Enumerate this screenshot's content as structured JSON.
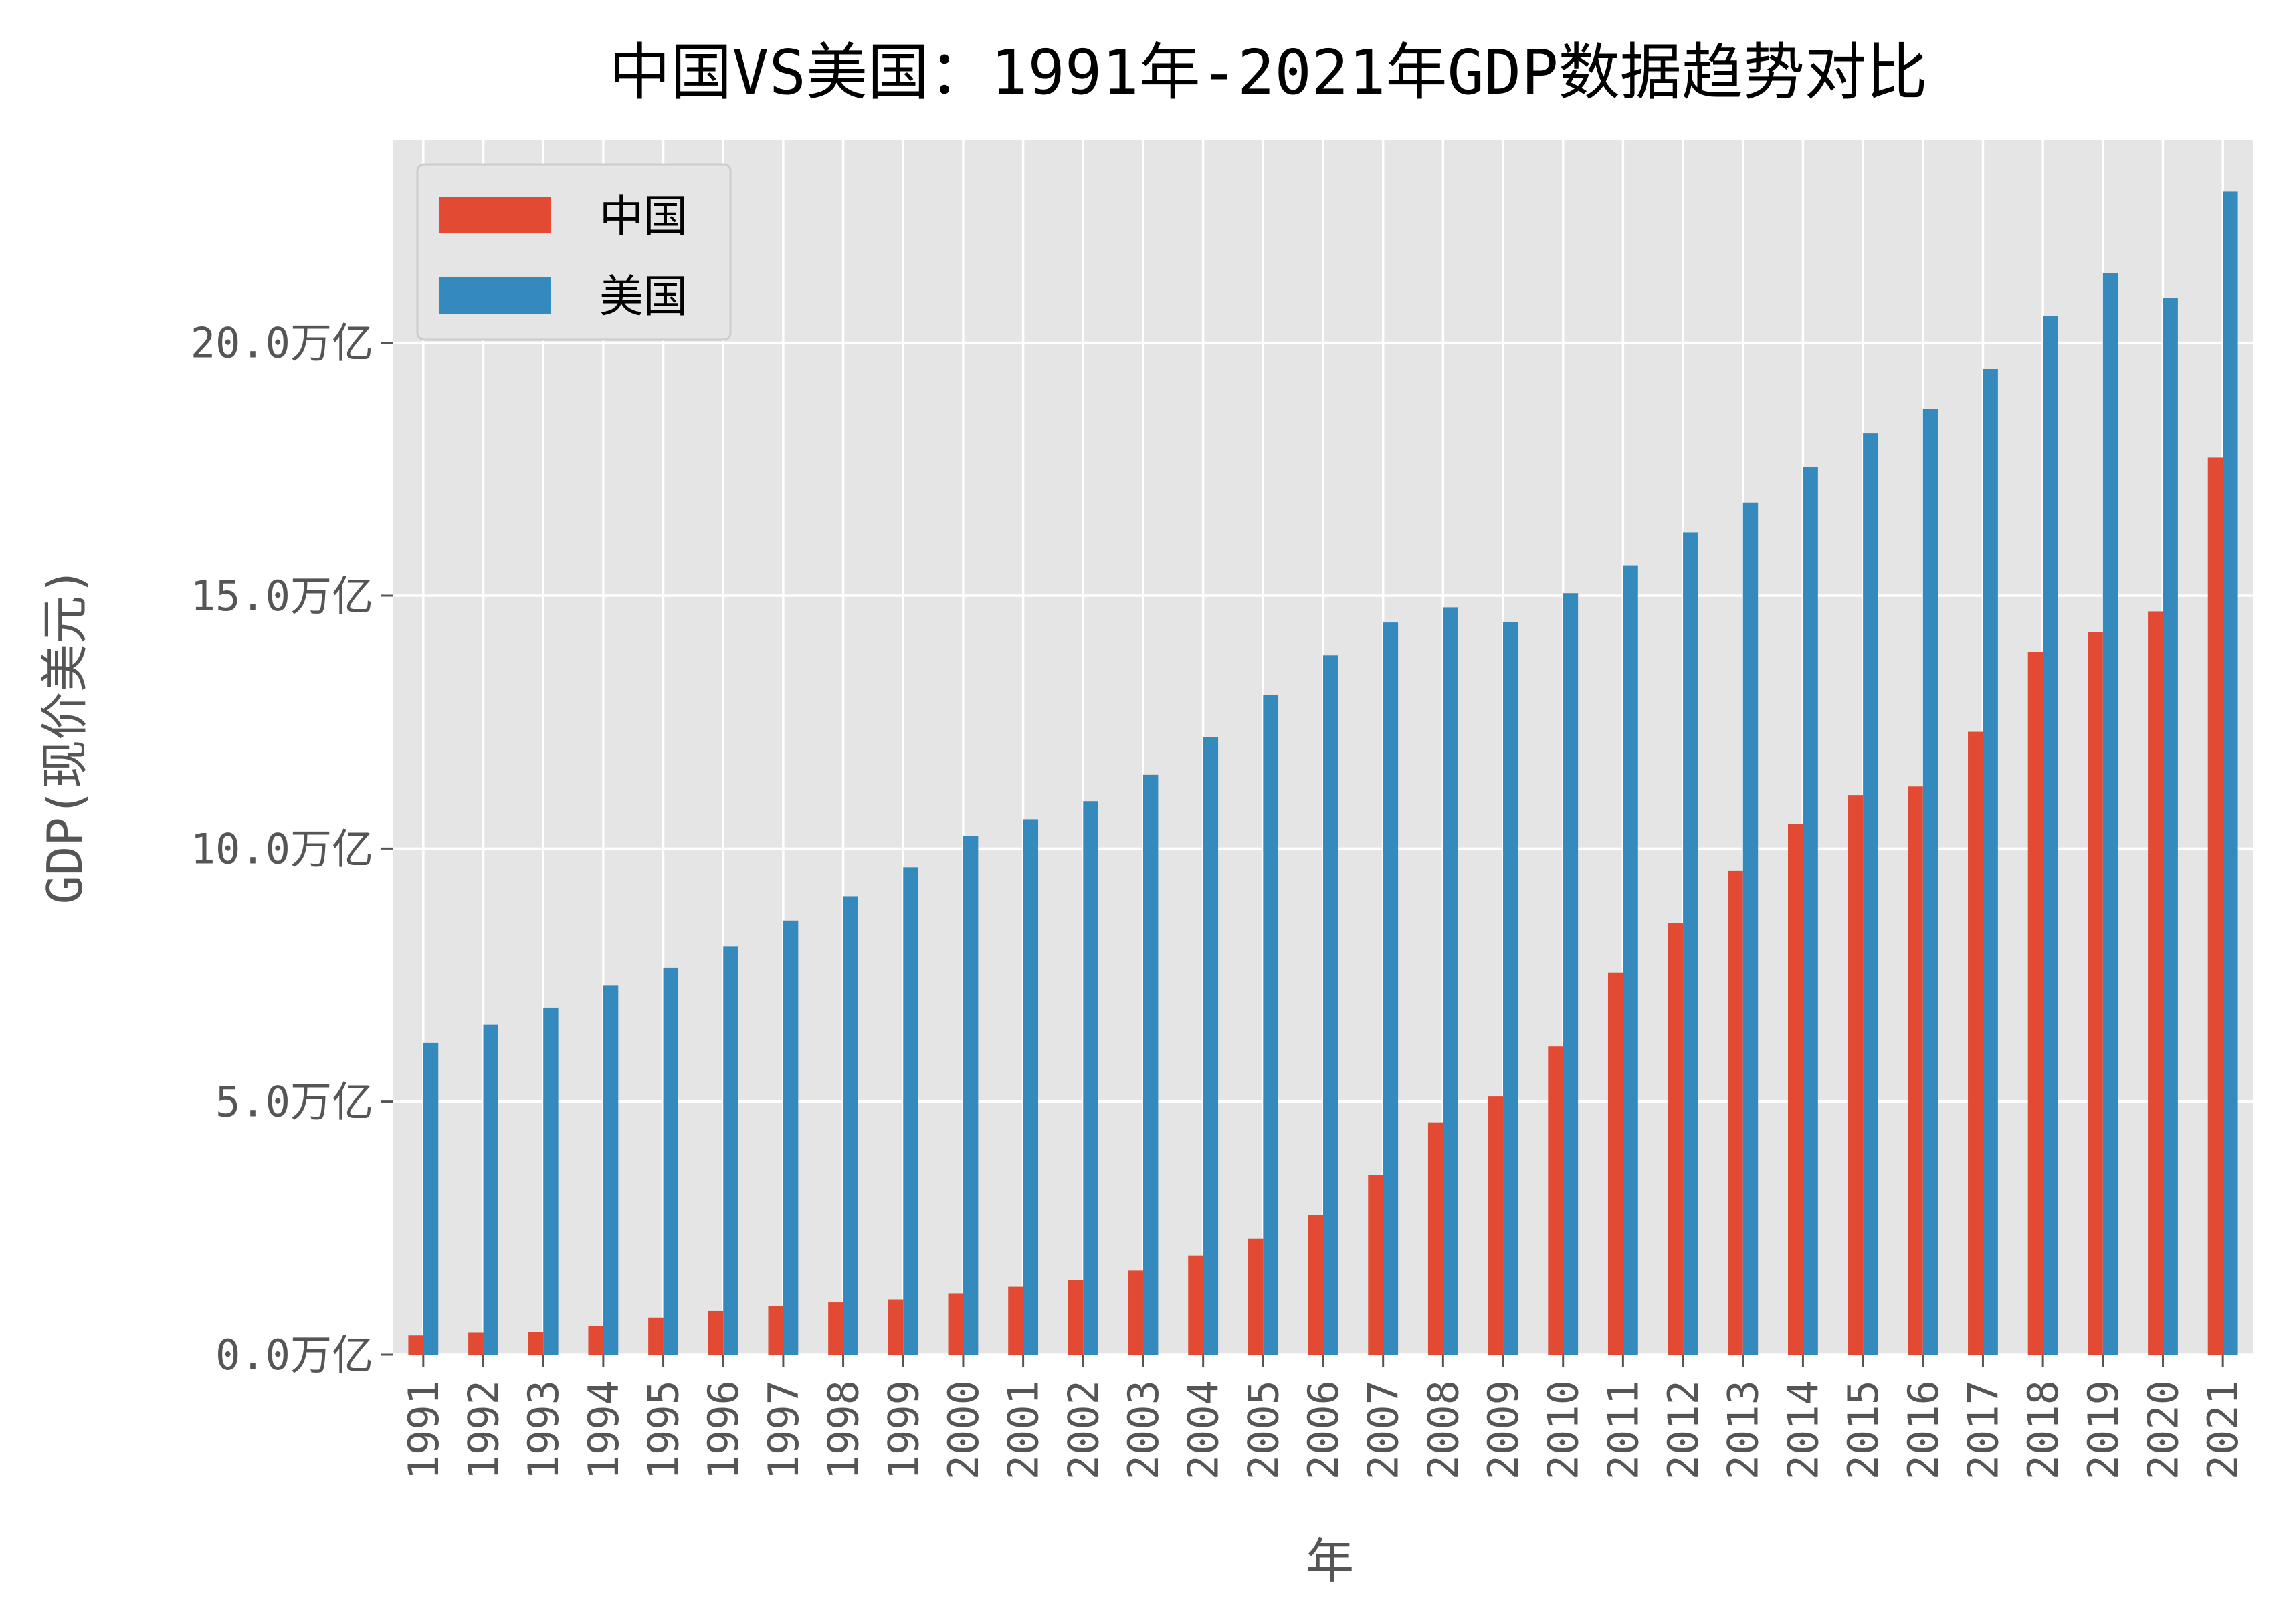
{
  "chart_data": {
    "type": "bar",
    "title": "中国VS美国：1991年-2021年GDP数据趋势对比",
    "xlabel": "年",
    "ylabel": "GDP(现价美元)",
    "ytick_suffix": "万亿",
    "ylim": [
      0,
      24
    ],
    "yticks": [
      0,
      5,
      10,
      15,
      20
    ],
    "ytick_labels": [
      "0.0万亿",
      "5.0万亿",
      "10.0万亿",
      "15.0万亿",
      "20.0万亿"
    ],
    "grid": true,
    "legend_position": "upper-left",
    "categories": [
      "1991",
      "1992",
      "1993",
      "1994",
      "1995",
      "1996",
      "1997",
      "1998",
      "1999",
      "2000",
      "2001",
      "2002",
      "2003",
      "2004",
      "2005",
      "2006",
      "2007",
      "2008",
      "2009",
      "2010",
      "2011",
      "2012",
      "2013",
      "2014",
      "2015",
      "2016",
      "2017",
      "2018",
      "2019",
      "2020",
      "2021"
    ],
    "series": [
      {
        "name": "中国",
        "color": "#E24A33",
        "values": [
          0.38,
          0.43,
          0.44,
          0.56,
          0.73,
          0.86,
          0.96,
          1.03,
          1.09,
          1.21,
          1.34,
          1.47,
          1.66,
          1.96,
          2.29,
          2.75,
          3.55,
          4.59,
          5.1,
          6.09,
          7.55,
          8.53,
          9.57,
          10.48,
          11.06,
          11.23,
          12.31,
          13.89,
          14.28,
          14.69,
          17.73
        ]
      },
      {
        "name": "美国",
        "color": "#348ABD",
        "values": [
          6.16,
          6.52,
          6.86,
          7.29,
          7.64,
          8.07,
          8.58,
          9.06,
          9.63,
          10.25,
          10.58,
          10.94,
          11.46,
          12.21,
          13.04,
          13.82,
          14.47,
          14.77,
          14.48,
          15.05,
          15.6,
          16.25,
          16.84,
          17.55,
          18.21,
          18.7,
          19.48,
          20.53,
          21.38,
          20.89,
          22.99
        ]
      }
    ]
  },
  "style": {
    "plot_background": "#E5E5E5",
    "grid_color": "#FFFFFF",
    "tick_color": "#555555"
  }
}
